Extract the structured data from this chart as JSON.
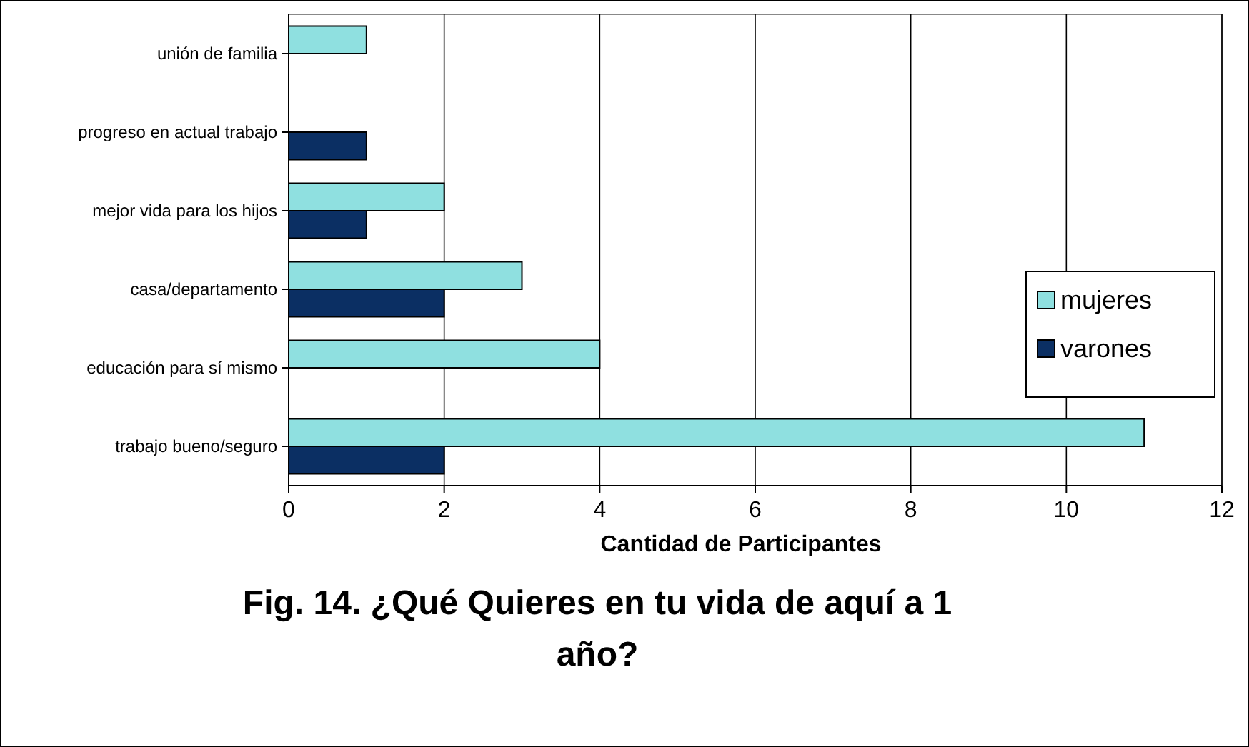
{
  "chart_data": {
    "type": "bar",
    "orientation": "horizontal",
    "title": "Fig. 14. ¿Qué Quieres en tu vida de aquí a 1 año?",
    "xlabel": "Cantidad de Participantes",
    "categories": [
      "unión de familia",
      "progreso en actual trabajo",
      "mejor vida para los hijos",
      "casa/departamento",
      "educación para sí mismo",
      "trabajo bueno/seguro"
    ],
    "series": [
      {
        "name": "mujeres",
        "color": "#8fe0e0",
        "values": [
          1,
          0,
          2,
          3,
          4,
          11
        ]
      },
      {
        "name": "varones",
        "color": "#0b2f63",
        "values": [
          0,
          1,
          1,
          2,
          0,
          2
        ]
      }
    ],
    "xlim": [
      0,
      12
    ],
    "xticks": [
      0,
      2,
      4,
      6,
      8,
      10,
      12
    ],
    "grid": "x",
    "legend": "right"
  }
}
